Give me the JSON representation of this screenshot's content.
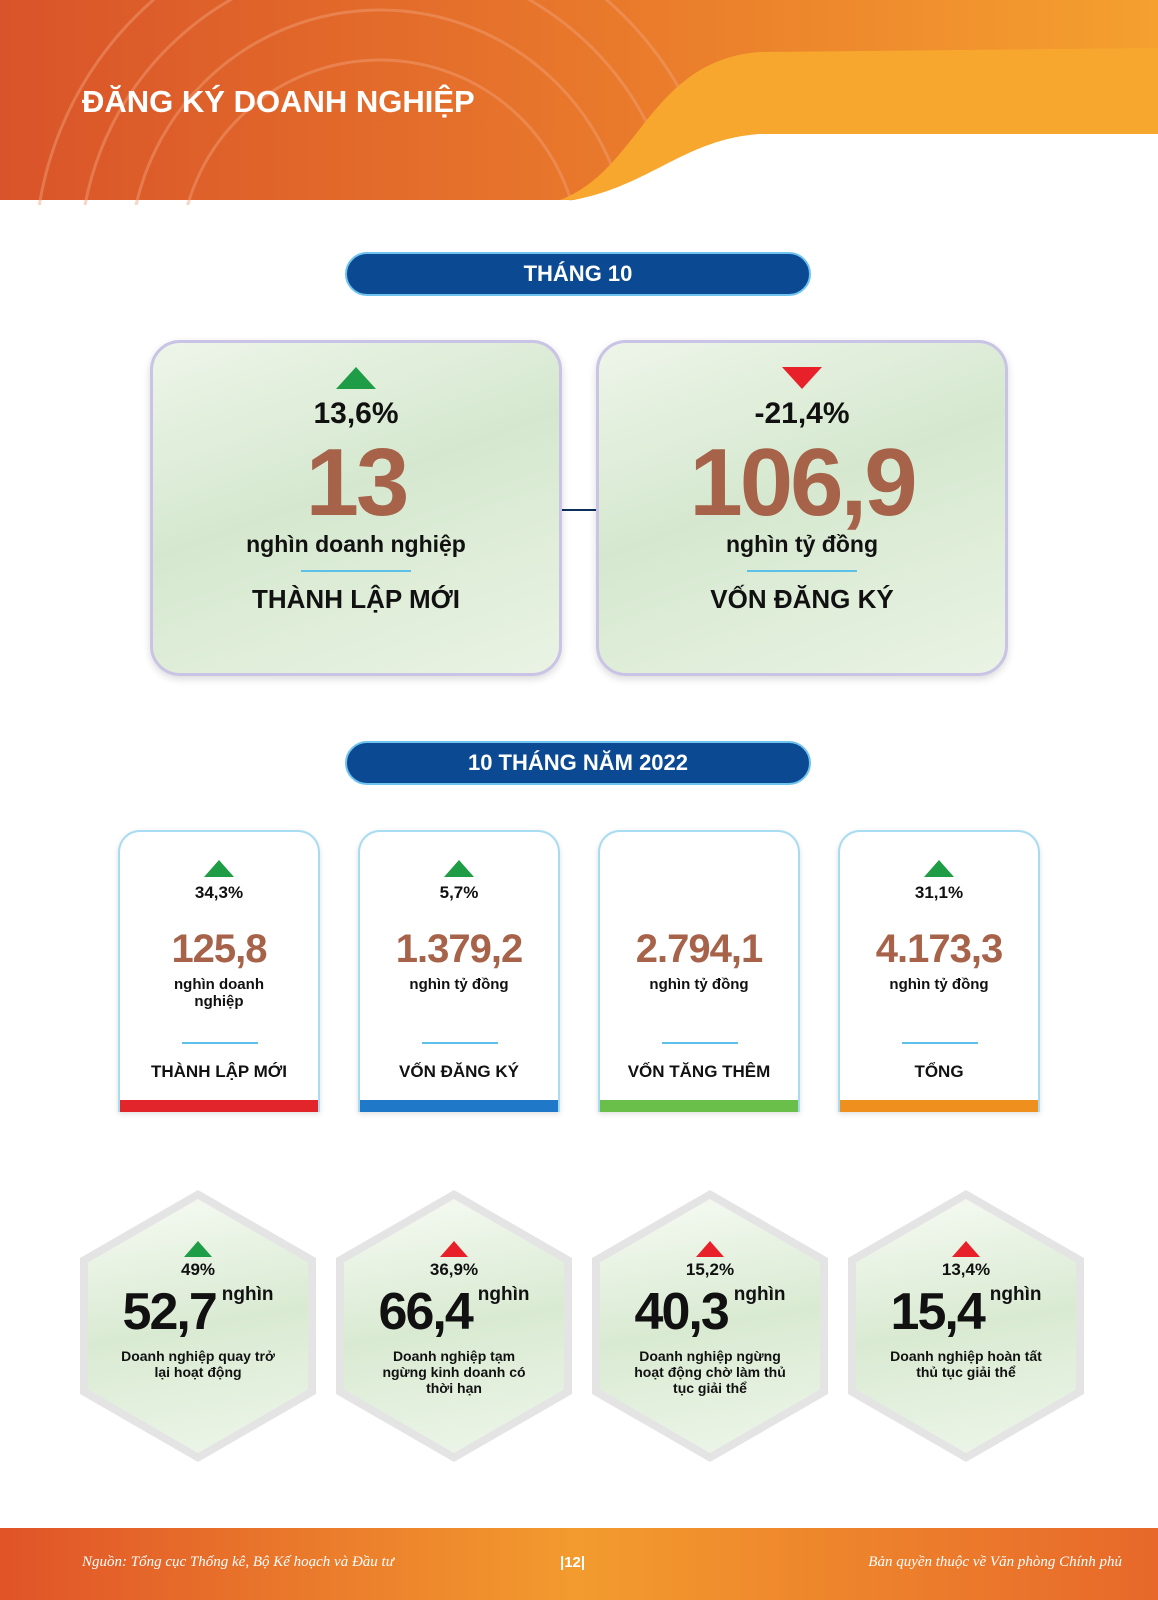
{
  "header": {
    "title": "ĐĂNG KÝ DOANH NGHIỆP"
  },
  "month": {
    "heading": "THÁNG 10",
    "cards": [
      {
        "change": "13,6%",
        "value": "13",
        "unit": "nghìn doanh nghiệp",
        "label": "THÀNH LẬP MỚI"
      },
      {
        "change": "-21,4%",
        "value": "106,9",
        "unit": "nghìn tỷ đồng",
        "label": "VỐN ĐĂNG KÝ"
      }
    ]
  },
  "year": {
    "heading": "10 THÁNG NĂM 2022",
    "cards": [
      {
        "change": "34,3%",
        "value": "125,8",
        "unit": "nghìn doanh nghiệp",
        "label": "THÀNH LẬP MỚI"
      },
      {
        "change": "5,7%",
        "value": "1.379,2",
        "unit": "nghìn tỷ đồng",
        "label": "VỐN ĐĂNG KÝ"
      },
      {
        "value": "2.794,1",
        "unit": "nghìn tỷ đồng",
        "label": "VỐN TĂNG THÊM"
      },
      {
        "change": "31,1%",
        "value": "4.173,3",
        "unit": "nghìn tỷ đồng",
        "label": "TỔNG"
      }
    ]
  },
  "hexes": [
    {
      "change": "49%",
      "value": "52,7",
      "unit": "nghìn",
      "description": "Doanh nghiệp quay trở lại hoạt động"
    },
    {
      "change": "36,9%",
      "value": "66,4",
      "unit": "nghìn",
      "description": "Doanh nghiệp tạm ngừng kinh doanh có thời hạn"
    },
    {
      "change": "15,2%",
      "value": "40,3",
      "unit": "nghìn",
      "description": "Doanh nghiệp ngừng hoạt động chờ làm thủ tục giải thể"
    },
    {
      "change": "13,4%",
      "value": "15,4",
      "unit": "nghìn",
      "description": "Doanh nghiệp hoàn tất thủ tục giải thể"
    }
  ],
  "footer": {
    "source": "Nguồn: Tổng cục Thống kê, Bộ Kế hoạch và Đầu tư",
    "page": "|12|",
    "copyright": "Bản quyền thuộc về Văn phòng Chính phủ"
  }
}
